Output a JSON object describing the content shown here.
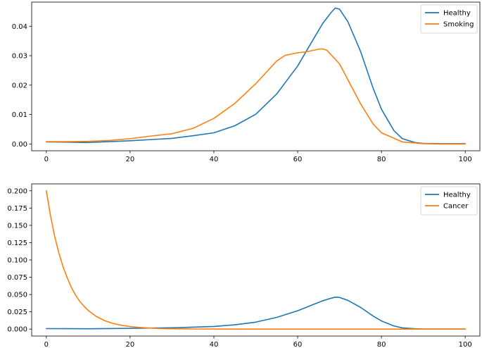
{
  "chart_data": [
    {
      "type": "line",
      "title": "",
      "xlabel": "",
      "ylabel": "",
      "xlim": [
        -3.5,
        103.5
      ],
      "ylim": [
        -0.0023,
        0.0482
      ],
      "xticks": [
        0,
        20,
        40,
        60,
        80,
        100
      ],
      "xtick_labels": [
        "0",
        "20",
        "40",
        "60",
        "80",
        "100"
      ],
      "yticks": [
        0.0,
        0.01,
        0.02,
        0.03,
        0.04
      ],
      "ytick_labels": [
        "0.00",
        "0.01",
        "0.02",
        "0.03",
        "0.04"
      ],
      "legend": "top-right",
      "grid": false,
      "series": [
        {
          "name": "Healthy",
          "color": "#1f77b4",
          "x": [
            0,
            5,
            10,
            15,
            20,
            25,
            30,
            35,
            40,
            45,
            50,
            55,
            60,
            63,
            66,
            68,
            69,
            70,
            72,
            75,
            78,
            80,
            83,
            85,
            88,
            90,
            95,
            100
          ],
          "y": [
            0.0007,
            0.0006,
            0.0005,
            0.0008,
            0.0011,
            0.0015,
            0.0019,
            0.0028,
            0.0038,
            0.0062,
            0.0101,
            0.017,
            0.0265,
            0.0338,
            0.041,
            0.0447,
            0.0462,
            0.0458,
            0.0415,
            0.0315,
            0.019,
            0.0118,
            0.0045,
            0.0018,
            0.0005,
            0.0002,
            0.0001,
            0.0001
          ]
        },
        {
          "name": "Smoking",
          "color": "#ff7f0e",
          "x": [
            0,
            5,
            10,
            15,
            20,
            25,
            30,
            35,
            40,
            45,
            50,
            55,
            57,
            60,
            62,
            65,
            66,
            67,
            70,
            75,
            78,
            80,
            85,
            90,
            95,
            100
          ],
          "y": [
            0.0008,
            0.0008,
            0.0009,
            0.0012,
            0.0018,
            0.0027,
            0.0035,
            0.0053,
            0.0087,
            0.0138,
            0.0205,
            0.0282,
            0.0301,
            0.031,
            0.0313,
            0.0322,
            0.0323,
            0.0318,
            0.0272,
            0.0137,
            0.0068,
            0.0038,
            0.0007,
            0.0001,
            0.0,
            0.0
          ]
        }
      ]
    },
    {
      "type": "line",
      "title": "",
      "xlabel": "",
      "ylabel": "",
      "xlim": [
        -3.5,
        103.5
      ],
      "ylim": [
        -0.01,
        0.21
      ],
      "xticks": [
        0,
        20,
        40,
        60,
        80,
        100
      ],
      "xtick_labels": [
        "0",
        "20",
        "40",
        "60",
        "80",
        "100"
      ],
      "yticks": [
        0.0,
        0.025,
        0.05,
        0.075,
        0.1,
        0.125,
        0.15,
        0.175,
        0.2
      ],
      "ytick_labels": [
        "0.000",
        "0.025",
        "0.050",
        "0.075",
        "0.100",
        "0.125",
        "0.150",
        "0.175",
        "0.200"
      ],
      "legend": "top-right",
      "grid": false,
      "series": [
        {
          "name": "Healthy",
          "color": "#1f77b4",
          "x": [
            0,
            5,
            10,
            15,
            20,
            25,
            30,
            35,
            40,
            45,
            50,
            55,
            60,
            63,
            66,
            68,
            69,
            70,
            72,
            75,
            78,
            80,
            83,
            85,
            88,
            90,
            95,
            100
          ],
          "y": [
            0.0007,
            0.0006,
            0.0005,
            0.0008,
            0.0011,
            0.0015,
            0.0019,
            0.0028,
            0.0038,
            0.0062,
            0.0101,
            0.017,
            0.0265,
            0.0338,
            0.041,
            0.0447,
            0.0462,
            0.0458,
            0.0415,
            0.0315,
            0.019,
            0.0118,
            0.0045,
            0.0018,
            0.0005,
            0.0002,
            0.0001,
            0.0001
          ]
        },
        {
          "name": "Cancer",
          "color": "#ff7f0e",
          "x": [
            0,
            1,
            2,
            3,
            4,
            5,
            6,
            7,
            8,
            9,
            10,
            12,
            14,
            16,
            18,
            20,
            22,
            25,
            28,
            30,
            35,
            40,
            50,
            60,
            70,
            80,
            90,
            100
          ],
          "y": [
            0.2,
            0.164,
            0.134,
            0.11,
            0.09,
            0.074,
            0.06,
            0.049,
            0.04,
            0.033,
            0.027,
            0.018,
            0.012,
            0.008,
            0.0055,
            0.0037,
            0.0025,
            0.0014,
            0.0007,
            0.0005,
            0.0002,
            0.0001,
            0.0,
            0.0,
            0.0,
            0.0,
            0.0,
            0.0
          ]
        }
      ]
    }
  ]
}
